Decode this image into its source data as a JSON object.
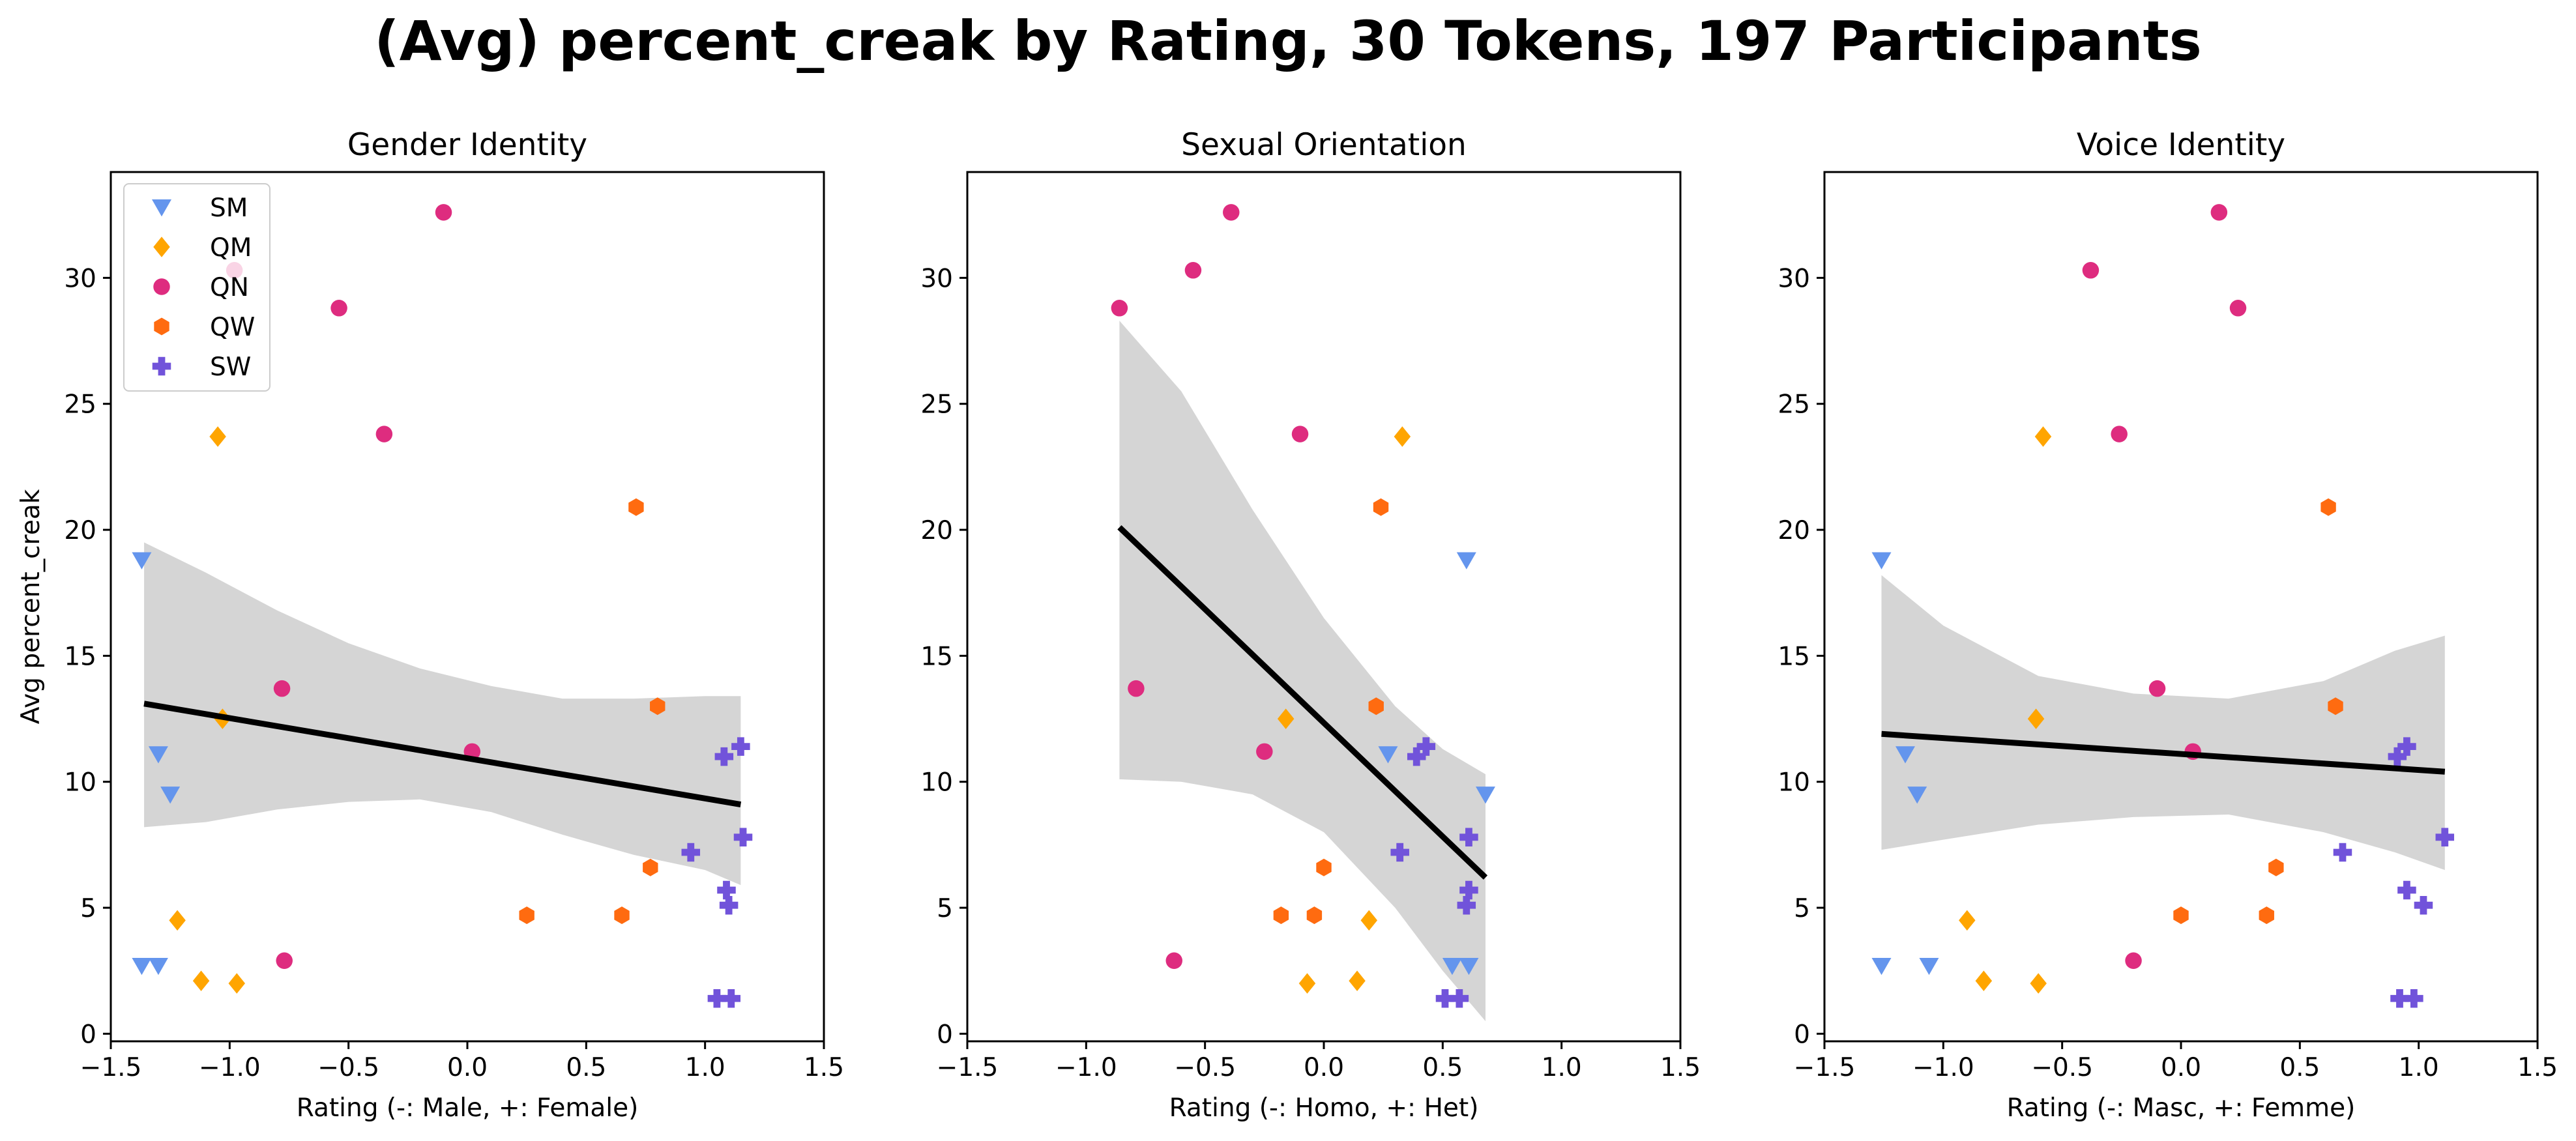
{
  "figure": {
    "title": "(Avg) percent_creak by Rating, 30 Tokens, 197 Participants"
  },
  "chart_data": [
    {
      "type": "scatter",
      "title": "Gender Identity",
      "xlabel": "Rating (-: Male, +: Female)",
      "ylabel": "Avg percent_creak",
      "xlim": [
        -1.5,
        1.5
      ],
      "ylim": [
        -0.3,
        34.2
      ],
      "xticks": [
        "−1.5",
        "−1.0",
        "−0.5",
        "0.0",
        "0.5",
        "1.0",
        "1.5"
      ],
      "yticks": [
        "0",
        "5",
        "10",
        "15",
        "20",
        "25",
        "30"
      ],
      "grid": false,
      "legend": {
        "position": "top-left",
        "entries": [
          "SM",
          "QM",
          "QN",
          "QW",
          "SW"
        ]
      },
      "regression": {
        "x": [
          -1.36,
          1.15
        ],
        "y": [
          13.1,
          9.1
        ],
        "ci_x": [
          -1.36,
          -1.1,
          -0.8,
          -0.5,
          -0.2,
          0.1,
          0.4,
          0.7,
          1.0,
          1.15
        ],
        "ci_upper": [
          19.5,
          18.3,
          16.8,
          15.5,
          14.5,
          13.8,
          13.3,
          13.3,
          13.4,
          13.4
        ],
        "ci_lower": [
          8.2,
          8.4,
          8.9,
          9.2,
          9.3,
          8.8,
          7.9,
          7.1,
          6.5,
          5.9
        ]
      },
      "series": [
        {
          "name": "SM",
          "points": [
            [
              -1.37,
              18.8
            ],
            [
              -1.3,
              11.1
            ],
            [
              -1.25,
              9.5
            ],
            [
              -1.37,
              2.7
            ],
            [
              -1.3,
              2.7
            ]
          ]
        },
        {
          "name": "QM",
          "points": [
            [
              -1.05,
              23.7
            ],
            [
              -1.03,
              12.5
            ],
            [
              -1.22,
              4.5
            ],
            [
              -1.12,
              2.1
            ],
            [
              -0.97,
              2.0
            ]
          ]
        },
        {
          "name": "QN",
          "points": [
            [
              -0.1,
              32.6
            ],
            [
              -0.98,
              30.3
            ],
            [
              -0.54,
              28.8
            ],
            [
              -0.35,
              23.8
            ],
            [
              -0.78,
              13.7
            ],
            [
              0.02,
              11.2
            ],
            [
              -0.77,
              2.9
            ]
          ]
        },
        {
          "name": "QW",
          "points": [
            [
              0.71,
              20.9
            ],
            [
              0.8,
              13.0
            ],
            [
              0.77,
              6.6
            ],
            [
              0.25,
              4.7
            ],
            [
              0.65,
              4.7
            ]
          ]
        },
        {
          "name": "SW",
          "points": [
            [
              1.15,
              11.4
            ],
            [
              1.08,
              11.0
            ],
            [
              1.16,
              7.8
            ],
            [
              0.94,
              7.2
            ],
            [
              1.09,
              5.7
            ],
            [
              1.1,
              5.1
            ],
            [
              1.05,
              1.4
            ],
            [
              1.11,
              1.4
            ]
          ]
        }
      ]
    },
    {
      "type": "scatter",
      "title": "Sexual Orientation",
      "xlabel": "Rating (-: Homo, +: Het)",
      "ylabel": "",
      "xlim": [
        -1.5,
        1.5
      ],
      "ylim": [
        -0.3,
        34.2
      ],
      "xticks": [
        "−1.5",
        "−1.0",
        "−0.5",
        "0.0",
        "0.5",
        "1.0",
        "1.5"
      ],
      "yticks": [
        "0",
        "5",
        "10",
        "15",
        "20",
        "25",
        "30"
      ],
      "grid": false,
      "regression": {
        "x": [
          -0.86,
          0.68
        ],
        "y": [
          20.1,
          6.2
        ],
        "ci_x": [
          -0.86,
          -0.6,
          -0.3,
          0.0,
          0.3,
          0.5,
          0.68
        ],
        "ci_upper": [
          28.3,
          25.5,
          20.8,
          16.5,
          13.0,
          11.3,
          10.3
        ],
        "ci_lower": [
          10.1,
          10.0,
          9.5,
          8.0,
          5.0,
          2.5,
          0.5
        ]
      },
      "series": [
        {
          "name": "SM",
          "points": [
            [
              0.6,
              18.8
            ],
            [
              0.27,
              11.1
            ],
            [
              0.68,
              9.5
            ],
            [
              0.54,
              2.7
            ],
            [
              0.61,
              2.7
            ]
          ]
        },
        {
          "name": "QM",
          "points": [
            [
              0.33,
              23.7
            ],
            [
              -0.16,
              12.5
            ],
            [
              0.19,
              4.5
            ],
            [
              0.14,
              2.1
            ],
            [
              -0.07,
              2.0
            ]
          ]
        },
        {
          "name": "QN",
          "points": [
            [
              -0.39,
              32.6
            ],
            [
              -0.55,
              30.3
            ],
            [
              -0.86,
              28.8
            ],
            [
              -0.1,
              23.8
            ],
            [
              -0.79,
              13.7
            ],
            [
              -0.25,
              11.2
            ],
            [
              -0.63,
              2.9
            ]
          ]
        },
        {
          "name": "QW",
          "points": [
            [
              0.24,
              20.9
            ],
            [
              0.22,
              13.0
            ],
            [
              0.0,
              6.6
            ],
            [
              -0.18,
              4.7
            ],
            [
              -0.04,
              4.7
            ]
          ]
        },
        {
          "name": "SW",
          "points": [
            [
              0.43,
              11.4
            ],
            [
              0.39,
              11.0
            ],
            [
              0.61,
              7.8
            ],
            [
              0.32,
              7.2
            ],
            [
              0.61,
              5.7
            ],
            [
              0.6,
              5.1
            ],
            [
              0.51,
              1.4
            ],
            [
              0.57,
              1.4
            ]
          ]
        }
      ]
    },
    {
      "type": "scatter",
      "title": "Voice Identity",
      "xlabel": "Rating (-: Masc, +: Femme)",
      "ylabel": "",
      "xlim": [
        -1.5,
        1.5
      ],
      "ylim": [
        -0.3,
        34.2
      ],
      "xticks": [
        "−1.5",
        "−1.0",
        "−0.5",
        "0.0",
        "0.5",
        "1.0",
        "1.5"
      ],
      "yticks": [
        "0",
        "5",
        "10",
        "15",
        "20",
        "25",
        "30"
      ],
      "grid": false,
      "regression": {
        "x": [
          -1.26,
          1.11
        ],
        "y": [
          11.9,
          10.4
        ],
        "ci_x": [
          -1.26,
          -1.0,
          -0.6,
          -0.2,
          0.2,
          0.6,
          0.9,
          1.11
        ],
        "ci_upper": [
          18.2,
          16.2,
          14.2,
          13.5,
          13.3,
          14.0,
          15.2,
          15.8
        ],
        "ci_lower": [
          7.3,
          7.7,
          8.3,
          8.6,
          8.7,
          8.0,
          7.2,
          6.5
        ]
      },
      "series": [
        {
          "name": "SM",
          "points": [
            [
              -1.26,
              18.8
            ],
            [
              -1.16,
              11.1
            ],
            [
              -1.11,
              9.5
            ],
            [
              -1.26,
              2.7
            ],
            [
              -1.06,
              2.7
            ]
          ]
        },
        {
          "name": "QM",
          "points": [
            [
              -0.58,
              23.7
            ],
            [
              -0.61,
              12.5
            ],
            [
              -0.9,
              4.5
            ],
            [
              -0.83,
              2.1
            ],
            [
              -0.6,
              2.0
            ]
          ]
        },
        {
          "name": "QN",
          "points": [
            [
              0.16,
              32.6
            ],
            [
              -0.38,
              30.3
            ],
            [
              0.24,
              28.8
            ],
            [
              -0.26,
              23.8
            ],
            [
              -0.1,
              13.7
            ],
            [
              0.05,
              11.2
            ],
            [
              -0.2,
              2.9
            ]
          ]
        },
        {
          "name": "QW",
          "points": [
            [
              0.62,
              20.9
            ],
            [
              0.65,
              13.0
            ],
            [
              0.4,
              6.6
            ],
            [
              0.0,
              4.7
            ],
            [
              0.36,
              4.7
            ]
          ]
        },
        {
          "name": "SW",
          "points": [
            [
              0.95,
              11.4
            ],
            [
              0.91,
              11.0
            ],
            [
              1.11,
              7.8
            ],
            [
              0.68,
              7.2
            ],
            [
              0.95,
              5.7
            ],
            [
              1.02,
              5.1
            ],
            [
              0.92,
              1.4
            ],
            [
              0.98,
              1.4
            ]
          ]
        }
      ]
    }
  ],
  "styles": {
    "SM": {
      "color": "#6495ED",
      "marker": "triangle-down"
    },
    "QM": {
      "color": "#FFA500",
      "marker": "diamond"
    },
    "QN": {
      "color": "#DE2C7F",
      "marker": "circle"
    },
    "QW": {
      "color": "#FF6B10",
      "marker": "hexagon"
    },
    "SW": {
      "color": "#7153DA",
      "marker": "plus"
    },
    "regression_line": "#000000",
    "ci_band": "#D5D5D5"
  }
}
